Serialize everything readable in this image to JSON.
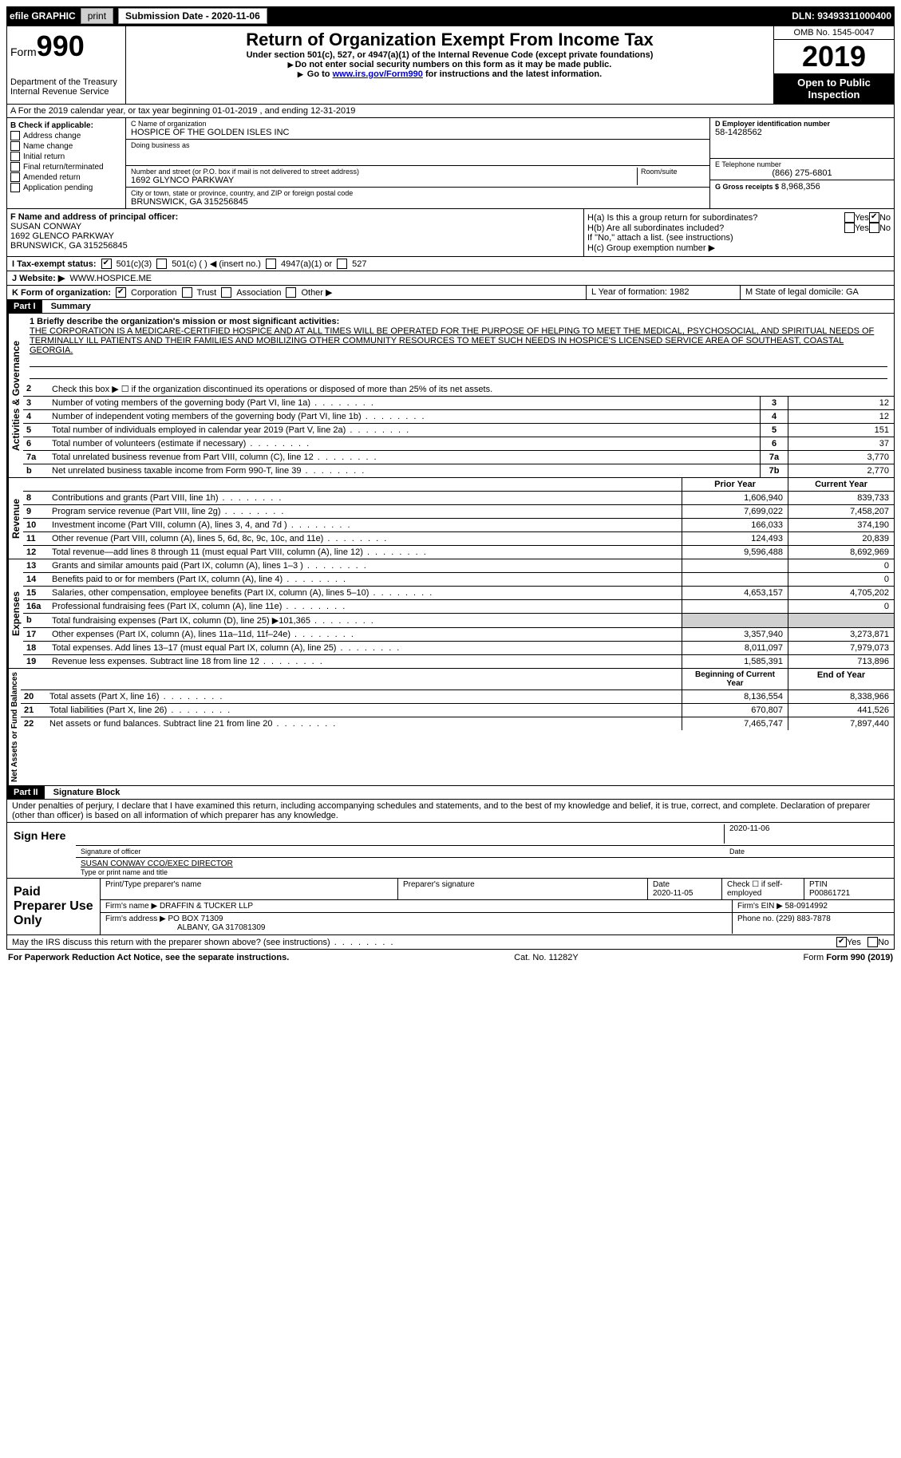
{
  "topbar": {
    "efile_label": "efile GRAPHIC",
    "print_btn": "print",
    "submission_label": "Submission Date - 2020-11-06",
    "dln": "DLN: 93493311000400"
  },
  "header": {
    "form_word": "Form",
    "form_num": "990",
    "dept1": "Department of the Treasury",
    "dept2": "Internal Revenue Service",
    "title": "Return of Organization Exempt From Income Tax",
    "subtitle": "Under section 501(c), 527, or 4947(a)(1) of the Internal Revenue Code (except private foundations)",
    "note1": "Do not enter social security numbers on this form as it may be made public.",
    "note2_prefix": "Go to ",
    "note2_link": "www.irs.gov/Form990",
    "note2_suffix": " for instructions and the latest information.",
    "omb": "OMB No. 1545-0047",
    "year": "2019",
    "open_pub": "Open to Public Inspection"
  },
  "row_a": "A For the 2019 calendar year, or tax year beginning 01-01-2019   , and ending 12-31-2019",
  "box_b": {
    "title": "B Check if applicable:",
    "items": [
      "Address change",
      "Name change",
      "Initial return",
      "Final return/terminated",
      "Amended return",
      "Application pending"
    ]
  },
  "box_c": {
    "name_label": "C Name of organization",
    "name": "HOSPICE OF THE GOLDEN ISLES INC",
    "dba_label": "Doing business as",
    "addr_label": "Number and street (or P.O. box if mail is not delivered to street address)",
    "room_label": "Room/suite",
    "addr": "1692 GLYNCO PARKWAY",
    "city_label": "City or town, state or province, country, and ZIP or foreign postal code",
    "city": "BRUNSWICK, GA  315256845"
  },
  "box_d": {
    "label": "D Employer identification number",
    "ein": "58-1428562",
    "phone_label": "E Telephone number",
    "phone": "(866) 275-6801",
    "gross_label": "G Gross receipts $",
    "gross": "8,968,356"
  },
  "box_f": {
    "label": "F  Name and address of principal officer:",
    "name": "SUSAN CONWAY",
    "addr1": "1692 GLENCO PARKWAY",
    "addr2": "BRUNSWICK, GA  315256845"
  },
  "box_h": {
    "a_label": "H(a)  Is this a group return for subordinates?",
    "b_label": "H(b)  Are all subordinates included?",
    "b_note": "If \"No,\" attach a list. (see instructions)",
    "c_label": "H(c)  Group exemption number ▶",
    "yes": "Yes",
    "no": "No"
  },
  "tax_row": {
    "label": "I   Tax-exempt status:",
    "o1": "501(c)(3)",
    "o2": "501(c) (  ) ◀ (insert no.)",
    "o3": "4947(a)(1) or",
    "o4": "527"
  },
  "web_row": {
    "label": "J   Website: ▶",
    "val": "WWW.HOSPICE.ME"
  },
  "k_row": {
    "label": "K Form of organization:",
    "corp": "Corporation",
    "trust": "Trust",
    "assoc": "Association",
    "other": "Other ▶"
  },
  "lm_row": {
    "l": "L Year of formation: 1982",
    "m": "M State of legal domicile: GA"
  },
  "part1": {
    "header": "Part I",
    "title": "Summary",
    "q1_label": "1   Briefly describe the organization's mission or most significant activities:",
    "q1_text": "THE CORPORATION IS A MEDICARE-CERTIFIED HOSPICE AND AT ALL TIMES WILL BE OPERATED FOR THE PURPOSE OF HELPING TO MEET THE MEDICAL, PSYCHOSOCIAL, AND SPIRITUAL NEEDS OF TERMINALLY ILL PATIENTS AND THEIR FAMILIES AND MOBILIZING OTHER COMMUNITY RESOURCES TO MEET SUCH NEEDS IN HOSPICE'S LICENSED SERVICE AREA OF SOUTHEAST, COASTAL GEORGIA.",
    "q2": "Check this box ▶ ☐  if the organization discontinued its operations or disposed of more than 25% of its net assets.",
    "side_ag": "Activities & Governance",
    "side_rev": "Revenue",
    "side_exp": "Expenses",
    "side_net": "Net Assets or Fund Balances",
    "lines_ag": [
      {
        "n": "3",
        "t": "Number of voting members of the governing body (Part VI, line 1a)",
        "box": "3",
        "v": "12"
      },
      {
        "n": "4",
        "t": "Number of independent voting members of the governing body (Part VI, line 1b)",
        "box": "4",
        "v": "12"
      },
      {
        "n": "5",
        "t": "Total number of individuals employed in calendar year 2019 (Part V, line 2a)",
        "box": "5",
        "v": "151"
      },
      {
        "n": "6",
        "t": "Total number of volunteers (estimate if necessary)",
        "box": "6",
        "v": "37"
      },
      {
        "n": "7a",
        "t": "Total unrelated business revenue from Part VIII, column (C), line 12",
        "box": "7a",
        "v": "3,770"
      },
      {
        "n": "b",
        "t": "Net unrelated business taxable income from Form 990-T, line 39",
        "box": "7b",
        "v": "2,770"
      }
    ],
    "col_prior": "Prior Year",
    "col_curr": "Current Year",
    "lines_rev": [
      {
        "n": "8",
        "t": "Contributions and grants (Part VIII, line 1h)",
        "p": "1,606,940",
        "c": "839,733"
      },
      {
        "n": "9",
        "t": "Program service revenue (Part VIII, line 2g)",
        "p": "7,699,022",
        "c": "7,458,207"
      },
      {
        "n": "10",
        "t": "Investment income (Part VIII, column (A), lines 3, 4, and 7d )",
        "p": "166,033",
        "c": "374,190"
      },
      {
        "n": "11",
        "t": "Other revenue (Part VIII, column (A), lines 5, 6d, 8c, 9c, 10c, and 11e)",
        "p": "124,493",
        "c": "20,839"
      },
      {
        "n": "12",
        "t": "Total revenue—add lines 8 through 11 (must equal Part VIII, column (A), line 12)",
        "p": "9,596,488",
        "c": "8,692,969"
      }
    ],
    "lines_exp": [
      {
        "n": "13",
        "t": "Grants and similar amounts paid (Part IX, column (A), lines 1–3 )",
        "p": "",
        "c": "0"
      },
      {
        "n": "14",
        "t": "Benefits paid to or for members (Part IX, column (A), line 4)",
        "p": "",
        "c": "0"
      },
      {
        "n": "15",
        "t": "Salaries, other compensation, employee benefits (Part IX, column (A), lines 5–10)",
        "p": "4,653,157",
        "c": "4,705,202"
      },
      {
        "n": "16a",
        "t": "Professional fundraising fees (Part IX, column (A), line 11e)",
        "p": "",
        "c": "0"
      },
      {
        "n": "b",
        "t": "Total fundraising expenses (Part IX, column (D), line 25) ▶101,365",
        "p": "shade",
        "c": "shade"
      },
      {
        "n": "17",
        "t": "Other expenses (Part IX, column (A), lines 11a–11d, 11f–24e)",
        "p": "3,357,940",
        "c": "3,273,871"
      },
      {
        "n": "18",
        "t": "Total expenses. Add lines 13–17 (must equal Part IX, column (A), line 25)",
        "p": "8,011,097",
        "c": "7,979,073"
      },
      {
        "n": "19",
        "t": "Revenue less expenses. Subtract line 18 from line 12",
        "p": "1,585,391",
        "c": "713,896"
      }
    ],
    "col_begin": "Beginning of Current Year",
    "col_end": "End of Year",
    "lines_net": [
      {
        "n": "20",
        "t": "Total assets (Part X, line 16)",
        "p": "8,136,554",
        "c": "8,338,966"
      },
      {
        "n": "21",
        "t": "Total liabilities (Part X, line 26)",
        "p": "670,807",
        "c": "441,526"
      },
      {
        "n": "22",
        "t": "Net assets or fund balances. Subtract line 21 from line 20",
        "p": "7,465,747",
        "c": "7,897,440"
      }
    ]
  },
  "part2": {
    "header": "Part II",
    "title": "Signature Block",
    "decl": "Under penalties of perjury, I declare that I have examined this return, including accompanying schedules and statements, and to the best of my knowledge and belief, it is true, correct, and complete. Declaration of preparer (other than officer) is based on all information of which preparer has any knowledge.",
    "sign_here": "Sign Here",
    "sig_officer": "Signature of officer",
    "sig_date": "2020-11-06",
    "date_label": "Date",
    "name_title": "SUSAN CONWAY CCO/EXEC DIRECTOR",
    "name_title_label": "Type or print name and title",
    "paid_prep": "Paid Preparer Use Only",
    "h_prep_name": "Print/Type preparer's name",
    "h_prep_sig": "Preparer's signature",
    "h_date": "Date",
    "h_date_val": "2020-11-05",
    "h_check": "Check ☐ if self-employed",
    "h_ptin_label": "PTIN",
    "h_ptin": "P00861721",
    "firm_name_label": "Firm's name   ▶",
    "firm_name": "DRAFFIN & TUCKER LLP",
    "firm_ein_label": "Firm's EIN ▶",
    "firm_ein": "58-0914992",
    "firm_addr_label": "Firm's address ▶",
    "firm_addr1": "PO BOX 71309",
    "firm_addr2": "ALBANY, GA  317081309",
    "firm_phone_label": "Phone no.",
    "firm_phone": "(229) 883-7878",
    "irs_discuss": "May the IRS discuss this return with the preparer shown above? (see instructions)",
    "yes": "Yes",
    "no": "No"
  },
  "footer": {
    "pra": "For Paperwork Reduction Act Notice, see the separate instructions.",
    "cat": "Cat. No. 11282Y",
    "form": "Form 990 (2019)"
  }
}
